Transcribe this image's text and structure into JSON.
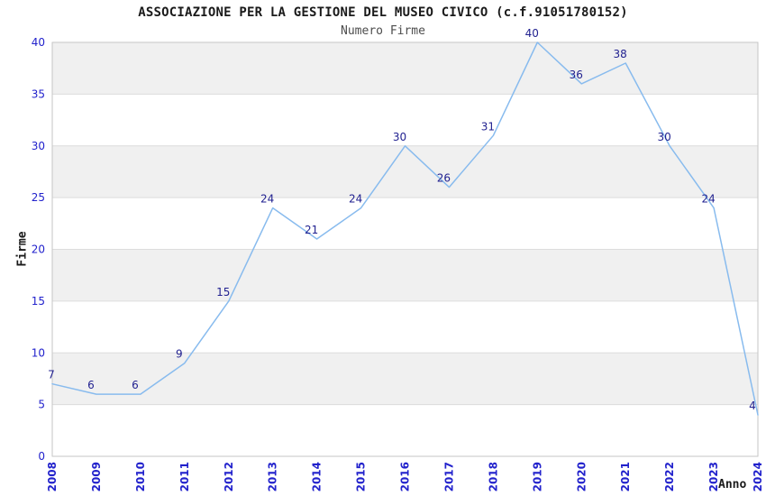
{
  "header": {
    "title": "ASSOCIAZIONE PER LA GESTIONE DEL MUSEO CIVICO (c.f.91051780152)",
    "subtitle": "Numero Firme"
  },
  "chart_data": {
    "type": "line",
    "title": "ASSOCIAZIONE PER LA GESTIONE DEL MUSEO CIVICO (c.f.91051780152)",
    "subtitle": "Numero Firme",
    "xlabel": "Anno",
    "ylabel": "Firme",
    "categories": [
      "2008",
      "2009",
      "2010",
      "2011",
      "2012",
      "2013",
      "2014",
      "2015",
      "2016",
      "2017",
      "2018",
      "2019",
      "2020",
      "2021",
      "2022",
      "2023",
      "2024"
    ],
    "values": [
      7,
      6,
      6,
      9,
      15,
      24,
      21,
      24,
      30,
      26,
      31,
      40,
      36,
      38,
      30,
      24,
      4
    ],
    "ylim": [
      0,
      40
    ],
    "ytick_step": 5,
    "grid": true,
    "legend": "none",
    "band_fill": true,
    "colors": {
      "line": "#88bbee",
      "tick_label": "#2222cc",
      "data_label": "#1f1f8f",
      "band": "#f0f0f0",
      "band_alt": "#ffffff",
      "grid_line": "#dcdcdc",
      "border": "#c6c6c6",
      "title": "#1a1a1a",
      "subtitle": "#4d4d4d",
      "axis_label": "#1a1a1a"
    }
  }
}
